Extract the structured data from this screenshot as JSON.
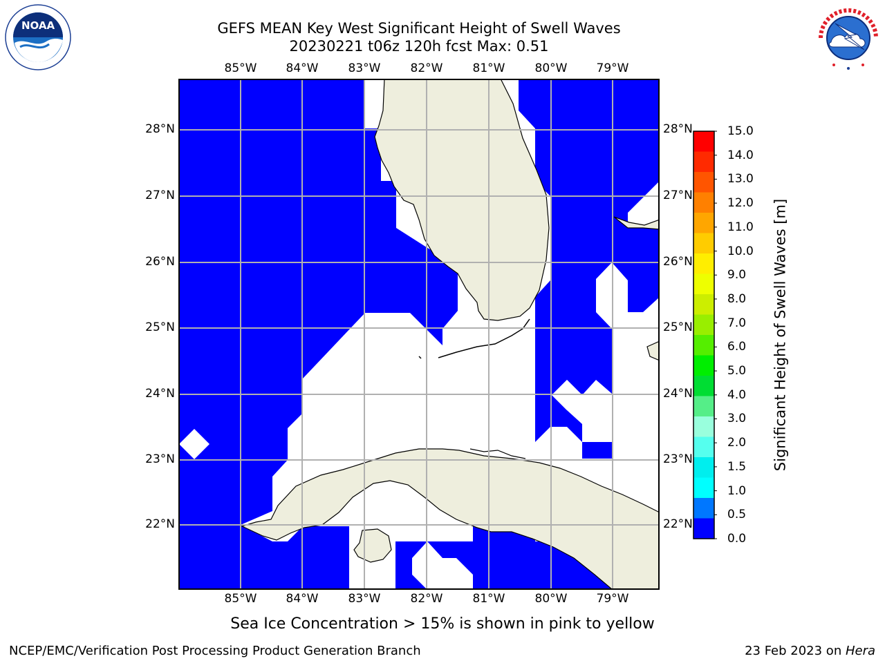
{
  "title_line1": "GEFS MEAN Key West Significant Height of Swell Waves",
  "title_line2": "20230221 t06z 120h fcst   Max: 0.51",
  "logos": {
    "left": {
      "icon": "noaa-logo",
      "text": "NOAA",
      "ring_text": "NATIONAL OCEANIC AND ATMOSPHERIC ADMINISTRATION · U.S. DEPARTMENT OF COMMERCE"
    },
    "right": {
      "icon": "nws-logo",
      "ring_text": "NATIONAL WEATHER SERVICE"
    }
  },
  "map": {
    "lon_labels": [
      "85°W",
      "84°W",
      "83°W",
      "82°W",
      "81°W",
      "80°W",
      "79°W"
    ],
    "lat_labels": [
      "28°N",
      "27°N",
      "26°N",
      "25°N",
      "24°N",
      "23°N",
      "22°N"
    ],
    "colors": {
      "ocean_fill": "#0000ff",
      "land": "#eeeedd",
      "gridlines": "#b0b0b0",
      "coastline": "#000000"
    }
  },
  "colorbar": {
    "title": "Significant Height of Swell Waves [m]",
    "labels": [
      "15.0",
      "14.0",
      "13.0",
      "12.0",
      "11.0",
      "10.0",
      "9.0",
      "8.0",
      "7.0",
      "6.0",
      "5.0",
      "4.0",
      "3.0",
      "2.0",
      "1.5",
      "1.0",
      "0.5",
      "0.0"
    ],
    "colors": [
      "#ff0000",
      "#ff2a00",
      "#ff5500",
      "#ff8000",
      "#ffa600",
      "#ffcc00",
      "#ffee00",
      "#eeff00",
      "#ccee00",
      "#99ee00",
      "#55ee00",
      "#00ee00",
      "#00dd33",
      "#55ee88",
      "#99ffdd",
      "#55ffee",
      "#00eeee",
      "#00ffff",
      "#0077ff",
      "#0000ff"
    ]
  },
  "subnote": "Sea Ice Concentration > 15% is shown in pink to yellow",
  "footer": {
    "left": "NCEP/EMC/Verification Post Processing Product Generation Branch",
    "right_prefix": "23 Feb 2023 on ",
    "right_host": "Hera"
  }
}
